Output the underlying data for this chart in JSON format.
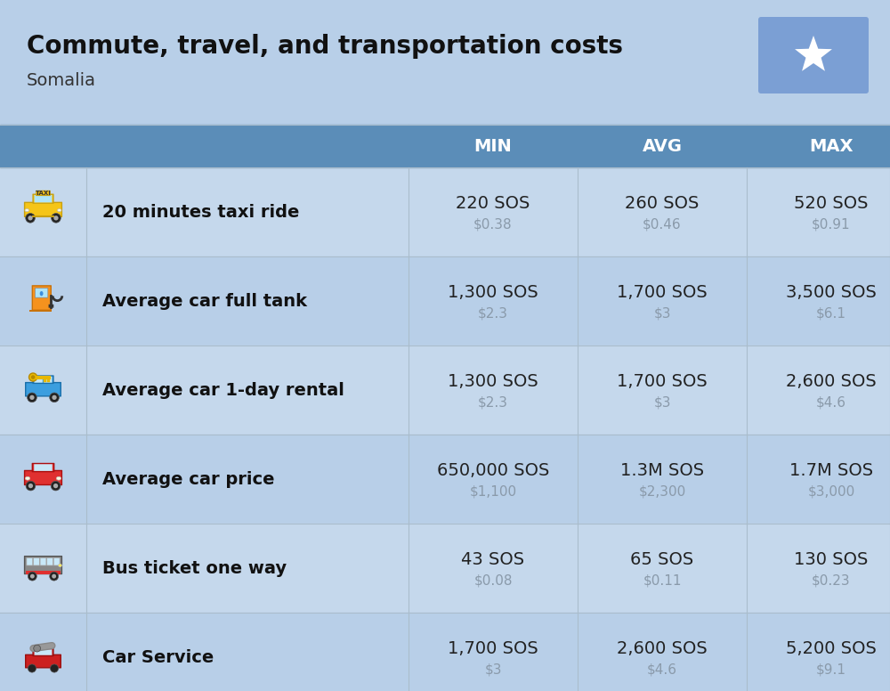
{
  "title": "Commute, travel, and transportation costs",
  "subtitle": "Somalia",
  "background_color": "#b8cfe8",
  "header_bg_color": "#5b8db8",
  "header_text_color": "#ffffff",
  "row_colors": [
    "#c5d8ec",
    "#b8cfe8"
  ],
  "col_headers": [
    "MIN",
    "AVG",
    "MAX"
  ],
  "rows": [
    {
      "label": "20 minutes taxi ride",
      "min_sos": "220 SOS",
      "min_usd": "$0.38",
      "avg_sos": "260 SOS",
      "avg_usd": "$0.46",
      "max_sos": "520 SOS",
      "max_usd": "$0.91"
    },
    {
      "label": "Average car full tank",
      "min_sos": "1,300 SOS",
      "min_usd": "$2.3",
      "avg_sos": "1,700 SOS",
      "avg_usd": "$3",
      "max_sos": "3,500 SOS",
      "max_usd": "$6.1"
    },
    {
      "label": "Average car 1-day rental",
      "min_sos": "1,300 SOS",
      "min_usd": "$2.3",
      "avg_sos": "1,700 SOS",
      "avg_usd": "$3",
      "max_sos": "2,600 SOS",
      "max_usd": "$4.6"
    },
    {
      "label": "Average car price",
      "min_sos": "650,000 SOS",
      "min_usd": "$1,100",
      "avg_sos": "1.3M SOS",
      "avg_usd": "$2,300",
      "max_sos": "1.7M SOS",
      "max_usd": "$3,000"
    },
    {
      "label": "Bus ticket one way",
      "min_sos": "43 SOS",
      "min_usd": "$0.08",
      "avg_sos": "65 SOS",
      "avg_usd": "$0.11",
      "max_sos": "130 SOS",
      "max_usd": "$0.23"
    },
    {
      "label": "Car Service",
      "min_sos": "1,700 SOS",
      "min_usd": "$3",
      "avg_sos": "2,600 SOS",
      "avg_usd": "$4.6",
      "max_sos": "5,200 SOS",
      "max_usd": "$9.1"
    }
  ],
  "flag_bg_color": "#7b9fd4",
  "flag_star_color": "#ffffff",
  "sos_color": "#222222",
  "usd_color": "#8a9aaa",
  "label_color": "#111111",
  "header_font_size": 14,
  "sos_font_size": 14,
  "usd_font_size": 11,
  "label_font_size": 14,
  "title_font_size": 20,
  "subtitle_font_size": 14
}
